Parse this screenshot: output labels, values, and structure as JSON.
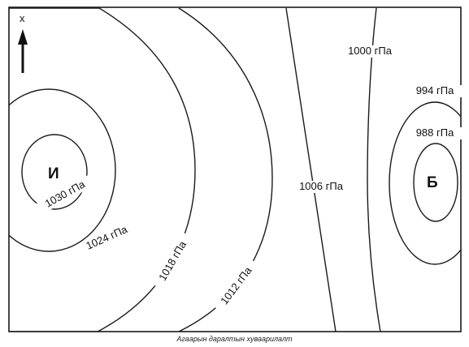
{
  "map": {
    "north_label": "x",
    "high_center": "И",
    "low_center": "Б",
    "isobars": [
      {
        "id": "p1030",
        "label": "1030 гПа"
      },
      {
        "id": "p1024",
        "label": "1024 гПа"
      },
      {
        "id": "p1018",
        "label": "1018 гПа"
      },
      {
        "id": "p1012",
        "label": "1012 гПа"
      },
      {
        "id": "p1006",
        "label": "1006 гПа"
      },
      {
        "id": "p1000",
        "label": "1000 гПа"
      },
      {
        "id": "p994",
        "label": "994 гПа"
      },
      {
        "id": "p988",
        "label": "988 гПа"
      }
    ]
  },
  "caption": "Агаарын даралтын хуваарилалт"
}
